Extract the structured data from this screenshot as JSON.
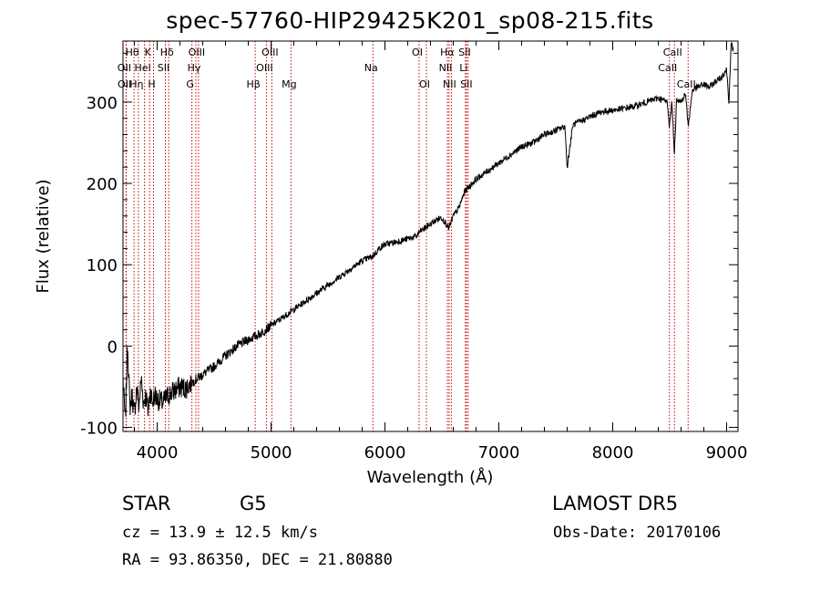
{
  "header": {
    "title": "spec-57760-HIP29425K201_sp08-215.fits"
  },
  "footer": {
    "object_class": "STAR",
    "subclass": "G5",
    "survey": "LAMOST DR5",
    "redshift": "cz = 13.9 ± 12.5 km/s",
    "obs_date": "Obs-Date: 20170106",
    "coords": "RA =  93.86350, DEC =  21.80880"
  },
  "colors": {
    "spectrum": "#000000",
    "line_markers": "#cc0000",
    "axes": "#000000"
  },
  "chart_data": {
    "type": "line",
    "title": "spec-57760-HIP29425K201_sp08-215.fits",
    "xlabel": "Wavelength (Å)",
    "ylabel": "Flux (relative)",
    "xlim": [
      3700,
      9100
    ],
    "ylim": [
      -105,
      375
    ],
    "xticks": [
      4000,
      5000,
      6000,
      7000,
      8000,
      9000
    ],
    "yticks": [
      -100,
      0,
      100,
      200,
      300
    ],
    "grid": false,
    "series": [
      {
        "x": [
          3700,
          3720,
          3740,
          3760,
          3780,
          3800,
          3820,
          3840,
          3860,
          3880,
          3900,
          3920,
          3940,
          3960,
          3980,
          4000,
          4050,
          4100,
          4150,
          4200,
          4250,
          4300,
          4350,
          4400,
          4450,
          4500,
          4600,
          4700,
          4800,
          4860,
          4900,
          5000,
          5100,
          5200,
          5300,
          5400,
          5500,
          5600,
          5700,
          5800,
          5890,
          5950,
          6000,
          6100,
          6200,
          6280,
          6300,
          6350,
          6400,
          6450,
          6500,
          6563,
          6600,
          6650,
          6700,
          6800,
          6900,
          7000,
          7100,
          7200,
          7300,
          7400,
          7500,
          7580,
          7600,
          7650,
          7700,
          7800,
          7900,
          8000,
          8100,
          8200,
          8300,
          8400,
          8480,
          8498,
          8520,
          8542,
          8560,
          8600,
          8640,
          8662,
          8700,
          8800,
          8850,
          8900,
          8950,
          9000,
          9020,
          9040,
          9060
        ],
        "y": [
          -40,
          -95,
          5,
          -75,
          -60,
          -85,
          -50,
          -75,
          -40,
          -70,
          -60,
          -80,
          -55,
          -70,
          -60,
          -65,
          -70,
          -60,
          -55,
          -50,
          -52,
          -45,
          -40,
          -35,
          -30,
          -25,
          -12,
          0,
          8,
          12,
          15,
          25,
          35,
          45,
          55,
          65,
          75,
          85,
          95,
          105,
          110,
          120,
          125,
          128,
          132,
          135,
          140,
          145,
          150,
          155,
          158,
          145,
          160,
          170,
          190,
          205,
          215,
          225,
          235,
          245,
          250,
          260,
          265,
          270,
          220,
          272,
          275,
          282,
          288,
          290,
          292,
          295,
          300,
          305,
          300,
          270,
          300,
          235,
          305,
          300,
          310,
          270,
          315,
          322,
          318,
          325,
          330,
          340,
          300,
          370,
          365
        ]
      }
    ],
    "lines": [
      {
        "label": "Hθ",
        "wave": 3797,
        "row": 0
      },
      {
        "label": "OII",
        "wave": 3727,
        "row": 1
      },
      {
        "label": "OII",
        "wave": 3729,
        "row": 2
      },
      {
        "label": "HeI",
        "wave": 3889,
        "row": 1
      },
      {
        "label": "Hη",
        "wave": 3835,
        "row": 2
      },
      {
        "label": "K",
        "wave": 3934,
        "row": 0
      },
      {
        "label": "H",
        "wave": 3968,
        "row": 2
      },
      {
        "label": "SII",
        "wave": 4072,
        "row": 1
      },
      {
        "label": "Hδ",
        "wave": 4102,
        "row": 0
      },
      {
        "label": "OIII",
        "wave": 4363,
        "row": 0
      },
      {
        "label": "Hγ",
        "wave": 4340,
        "row": 1
      },
      {
        "label": "G",
        "wave": 4305,
        "row": 2
      },
      {
        "label": "Hβ",
        "wave": 4861,
        "row": 2
      },
      {
        "label": "OIII",
        "wave": 5007,
        "row": 0
      },
      {
        "label": "OIII",
        "wave": 4959,
        "row": 1
      },
      {
        "label": "Mg",
        "wave": 5175,
        "row": 2
      },
      {
        "label": "Na",
        "wave": 5894,
        "row": 1
      },
      {
        "label": "OI",
        "wave": 6300,
        "row": 0
      },
      {
        "label": "OI",
        "wave": 6364,
        "row": 2
      },
      {
        "label": "Hα",
        "wave": 6563,
        "row": 0
      },
      {
        "label": "NII",
        "wave": 6548,
        "row": 1
      },
      {
        "label": "NII",
        "wave": 6583,
        "row": 2
      },
      {
        "label": "SII",
        "wave": 6716,
        "row": 0
      },
      {
        "label": "Li",
        "wave": 6707,
        "row": 1
      },
      {
        "label": "SII",
        "wave": 6731,
        "row": 2
      },
      {
        "label": "CaII",
        "wave": 8542,
        "row": 0
      },
      {
        "label": "CaII",
        "wave": 8498,
        "row": 1
      },
      {
        "label": "CaII",
        "wave": 8662,
        "row": 2
      }
    ]
  }
}
